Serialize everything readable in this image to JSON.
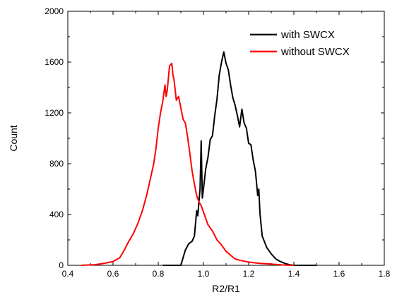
{
  "chart_data": {
    "type": "line",
    "title": "",
    "xlabel": "R2/R1",
    "ylabel": "Count",
    "xlim": [
      0.4,
      1.8
    ],
    "ylim": [
      0,
      2000
    ],
    "x_ticks": [
      "0.4",
      "0.6",
      "0.8",
      "1.0",
      "1.2",
      "1.4",
      "1.6",
      "1.8"
    ],
    "y_ticks": [
      "0",
      "400",
      "800",
      "1200",
      "1600",
      "2000"
    ],
    "grid": false,
    "legend_position": "top-right",
    "series": [
      {
        "name": "with SWCX",
        "color": "#000000",
        "points": [
          [
            0.82,
            0
          ],
          [
            0.9,
            0
          ],
          [
            0.91,
            60
          ],
          [
            0.92,
            120
          ],
          [
            0.935,
            170
          ],
          [
            0.95,
            190
          ],
          [
            0.96,
            230
          ],
          [
            0.97,
            430
          ],
          [
            0.975,
            390
          ],
          [
            0.98,
            500
          ],
          [
            0.985,
            600
          ],
          [
            0.99,
            980
          ],
          [
            0.995,
            530
          ],
          [
            1.0,
            600
          ],
          [
            1.01,
            760
          ],
          [
            1.02,
            850
          ],
          [
            1.03,
            990
          ],
          [
            1.04,
            1020
          ],
          [
            1.05,
            1180
          ],
          [
            1.06,
            1310
          ],
          [
            1.07,
            1500
          ],
          [
            1.08,
            1600
          ],
          [
            1.09,
            1680
          ],
          [
            1.1,
            1590
          ],
          [
            1.11,
            1540
          ],
          [
            1.12,
            1420
          ],
          [
            1.13,
            1320
          ],
          [
            1.14,
            1260
          ],
          [
            1.15,
            1180
          ],
          [
            1.16,
            1090
          ],
          [
            1.17,
            1230
          ],
          [
            1.18,
            1120
          ],
          [
            1.19,
            1080
          ],
          [
            1.2,
            960
          ],
          [
            1.21,
            950
          ],
          [
            1.22,
            830
          ],
          [
            1.23,
            740
          ],
          [
            1.24,
            550
          ],
          [
            1.245,
            600
          ],
          [
            1.25,
            410
          ],
          [
            1.26,
            230
          ],
          [
            1.28,
            140
          ],
          [
            1.3,
            90
          ],
          [
            1.32,
            50
          ],
          [
            1.34,
            30
          ],
          [
            1.36,
            15
          ],
          [
            1.38,
            5
          ],
          [
            1.4,
            0
          ],
          [
            1.5,
            0
          ]
        ]
      },
      {
        "name": "without SWCX",
        "color": "#ff0000",
        "points": [
          [
            0.46,
            0
          ],
          [
            0.52,
            5
          ],
          [
            0.56,
            15
          ],
          [
            0.6,
            30
          ],
          [
            0.63,
            60
          ],
          [
            0.65,
            120
          ],
          [
            0.67,
            190
          ],
          [
            0.69,
            250
          ],
          [
            0.71,
            330
          ],
          [
            0.73,
            430
          ],
          [
            0.75,
            560
          ],
          [
            0.76,
            640
          ],
          [
            0.77,
            720
          ],
          [
            0.78,
            800
          ],
          [
            0.79,
            920
          ],
          [
            0.8,
            1080
          ],
          [
            0.81,
            1200
          ],
          [
            0.82,
            1290
          ],
          [
            0.83,
            1420
          ],
          [
            0.835,
            1330
          ],
          [
            0.84,
            1380
          ],
          [
            0.85,
            1570
          ],
          [
            0.86,
            1590
          ],
          [
            0.865,
            1500
          ],
          [
            0.87,
            1460
          ],
          [
            0.88,
            1300
          ],
          [
            0.89,
            1330
          ],
          [
            0.9,
            1240
          ],
          [
            0.91,
            1150
          ],
          [
            0.92,
            1120
          ],
          [
            0.93,
            1010
          ],
          [
            0.94,
            880
          ],
          [
            0.95,
            740
          ],
          [
            0.96,
            640
          ],
          [
            0.97,
            550
          ],
          [
            0.98,
            500
          ],
          [
            0.99,
            470
          ],
          [
            1.0,
            420
          ],
          [
            1.02,
            320
          ],
          [
            1.04,
            270
          ],
          [
            1.06,
            200
          ],
          [
            1.08,
            160
          ],
          [
            1.1,
            110
          ],
          [
            1.12,
            80
          ],
          [
            1.14,
            50
          ],
          [
            1.16,
            40
          ],
          [
            1.2,
            25
          ],
          [
            1.25,
            15
          ],
          [
            1.3,
            10
          ],
          [
            1.35,
            3
          ],
          [
            1.4,
            0
          ]
        ]
      }
    ]
  }
}
